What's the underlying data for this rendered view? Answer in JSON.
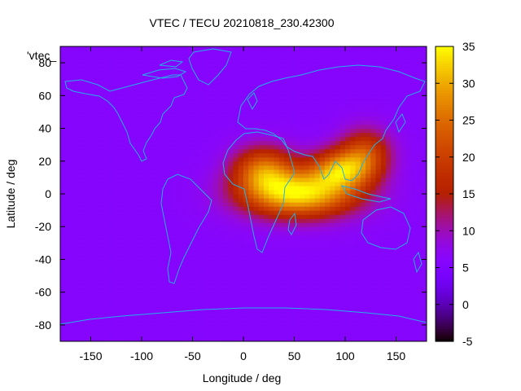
{
  "chart_data": {
    "type": "heatmap",
    "title": "VTEC / TECU 20210818_230.42300",
    "xlabel": "Longitude / deg",
    "ylabel": "Latitude / deg",
    "xlim": [
      -180,
      180
    ],
    "ylim": [
      -90,
      90
    ],
    "x_ticks": [
      -150,
      -100,
      -50,
      0,
      50,
      100,
      150
    ],
    "y_ticks": [
      -80,
      -60,
      -40,
      -20,
      0,
      20,
      40,
      60,
      80
    ],
    "colorbar": {
      "range": [
        -5,
        35
      ],
      "ticks": [
        -5,
        0,
        5,
        10,
        15,
        20,
        25,
        30,
        35
      ],
      "palette": "gnuplot default (black-purple-red-orange-yellow)"
    },
    "legend": {
      "entry": "'vtec_",
      "position": "top-left"
    },
    "grid": false,
    "approx_field": {
      "background_value": 6,
      "peaks": [
        {
          "lon": 55,
          "lat": 0,
          "value": 33,
          "spread_lon": 55,
          "spread_lat": 14
        },
        {
          "lon": 95,
          "lat": 15,
          "value": 26,
          "spread_lon": 30,
          "spread_lat": 12
        },
        {
          "lon": 20,
          "lat": 15,
          "value": 24,
          "spread_lon": 30,
          "spread_lat": 14
        },
        {
          "lon": 120,
          "lat": 25,
          "value": 20,
          "spread_lon": 25,
          "spread_lat": 15
        }
      ]
    }
  }
}
